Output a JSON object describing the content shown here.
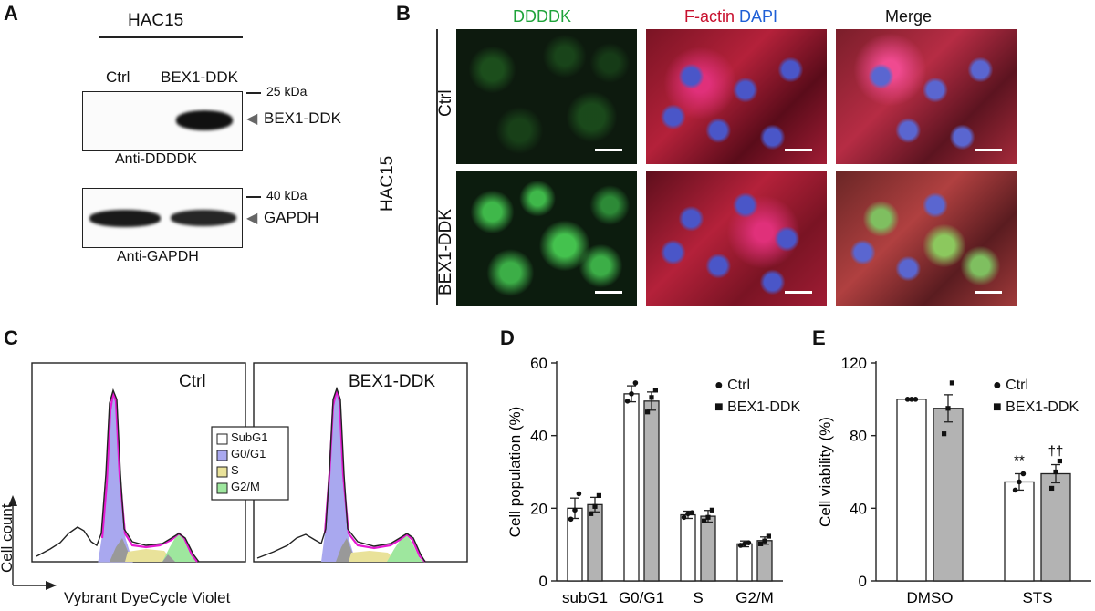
{
  "panel_a": {
    "letter": "A",
    "cell_line": "HAC15",
    "lane_labels": [
      "Ctrl",
      "BEX1-DDK"
    ],
    "marker_top": "25 kDa",
    "marker_bottom": "40 kDa",
    "band_top": "BEX1-DDK",
    "band_bottom": "GAPDH",
    "antibody_top": "Anti-DDDDK",
    "antibody_bottom": "Anti-GAPDH"
  },
  "panel_b": {
    "letter": "B",
    "col_green": "DDDDK",
    "col_red": "F-actin",
    "col_blue": "DAPI",
    "col_merge": "Merge",
    "row_ctrl": "Ctrl",
    "row_bex": "BEX1-DDK",
    "side_label": "HAC15",
    "colors": {
      "green": "#1fa33a",
      "red": "#c8102e",
      "blue": "#1f5fd6"
    }
  },
  "panel_c": {
    "letter": "C",
    "left_title": "Ctrl",
    "right_title": "BEX1-DDK",
    "xlabel": "Vybrant DyeCycle Violet",
    "ylabel": "Cell count",
    "legend": [
      {
        "label": "SubG1",
        "color": "#ffffff"
      },
      {
        "label": "G0/G1",
        "color": "#a9a8ef"
      },
      {
        "label": "S",
        "color": "#e9e29a"
      },
      {
        "label": "G2/M",
        "color": "#9ee79e"
      }
    ]
  },
  "panel_d": {
    "letter": "D",
    "legend_ctrl": "Ctrl",
    "legend_bex": "BEX1-DDK"
  },
  "panel_e": {
    "letter": "E",
    "legend_ctrl": "Ctrl",
    "legend_bex": "BEX1-DDK",
    "sig_ctrl": "**",
    "sig_bex": "††"
  },
  "chart_data": [
    {
      "type": "bar",
      "panel": "D",
      "categories": [
        "subG1",
        "G0/G1",
        "S",
        "G2/M"
      ],
      "series": [
        {
          "name": "Ctrl",
          "values": [
            20,
            51.5,
            18.2,
            10.2
          ],
          "errors": [
            2.8,
            2.2,
            1.0,
            0.8
          ],
          "points": [
            [
              17,
              19.5,
              24
            ],
            [
              49.5,
              51.5,
              54.5
            ],
            [
              17.5,
              18.5,
              18.8
            ],
            [
              9.8,
              10.2,
              10.5
            ]
          ]
        },
        {
          "name": "BEX1-DDK",
          "values": [
            21,
            49.5,
            17.8,
            11.1
          ],
          "errors": [
            2.0,
            2.5,
            1.6,
            1.0
          ],
          "points": [
            [
              18.5,
              20.5,
              23.5
            ],
            [
              46.5,
              50.5,
              52.5
            ],
            [
              16.5,
              17.5,
              19.5
            ],
            [
              10.2,
              11,
              12.3
            ]
          ]
        }
      ],
      "xlabel": "",
      "ylabel": "Cell population (%)",
      "ylim": [
        0,
        60
      ],
      "yticks": [
        0,
        20,
        40,
        60
      ],
      "legend": "top-right"
    },
    {
      "type": "bar",
      "panel": "E",
      "categories": [
        "DMSO",
        "STS"
      ],
      "series": [
        {
          "name": "Ctrl",
          "values": [
            100,
            54.5
          ],
          "errors": [
            0.5,
            4.5
          ],
          "points": [
            [
              100,
              100,
              100
            ],
            [
              50,
              54.5,
              59
            ]
          ]
        },
        {
          "name": "BEX1-DDK",
          "values": [
            95,
            59
          ],
          "errors": [
            7.5,
            5
          ],
          "points": [
            [
              81,
              95,
              109
            ],
            [
              51,
              60,
              66
            ]
          ]
        }
      ],
      "xlabel": "",
      "ylabel": "Cell viability (%)",
      "ylim": [
        0,
        120
      ],
      "yticks": [
        0,
        40,
        80,
        120
      ],
      "legend": "top-right"
    },
    {
      "type": "area",
      "panel": "C",
      "xlabel": "Vybrant DyeCycle Violet",
      "ylabel": "Cell count",
      "series": [
        {
          "name": "Ctrl",
          "peaks": {
            "G0/G1": 1.0,
            "G2/M": 0.18,
            "SubG1": 0.22
          }
        },
        {
          "name": "BEX1-DDK",
          "peaks": {
            "G0/G1": 1.0,
            "G2/M": 0.17,
            "SubG1": 0.2
          }
        }
      ]
    }
  ]
}
